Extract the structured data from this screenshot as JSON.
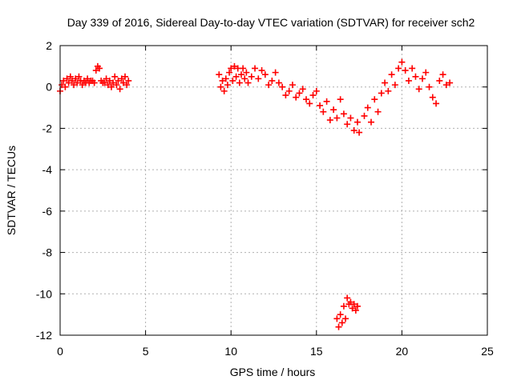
{
  "chart_data": {
    "type": "scatter",
    "title": "Day 339 of 2016, Sidereal Day-to-day VTEC variation (SDTVAR) for receiver sch2",
    "xlabel": "GPS time / hours",
    "ylabel": "SDTVAR / TECUs",
    "xlim": [
      0,
      25
    ],
    "ylim": [
      -12,
      2
    ],
    "xticks": [
      0,
      5,
      10,
      15,
      20,
      25
    ],
    "yticks": [
      -12,
      -10,
      -8,
      -6,
      -4,
      -2,
      0,
      2
    ],
    "xtick_labels": [
      "0",
      "5",
      "10",
      "15",
      "20",
      "25"
    ],
    "ytick_labels": [
      "-12",
      "-10",
      "-8",
      "-6",
      "-4",
      "-2",
      "0",
      "2"
    ],
    "grid": true,
    "marker": "+",
    "series": [
      {
        "name": "sch2",
        "color": "#ff0000",
        "segments": [
          {
            "x": [
              0.0,
              0.1,
              0.2,
              0.3,
              0.4,
              0.5,
              0.6,
              0.7,
              0.8,
              0.9,
              1.0,
              1.1,
              1.2,
              1.3,
              1.4,
              1.5,
              1.6,
              1.7,
              1.8
            ],
            "y": [
              -0.2,
              0.1,
              0.3,
              0.0,
              0.4,
              0.2,
              0.5,
              0.3,
              0.1,
              0.4,
              0.2,
              0.5,
              0.3,
              0.1,
              0.3,
              0.2,
              0.4,
              0.2,
              0.3
            ]
          },
          {
            "x": [
              1.9,
              2.0,
              2.1,
              2.2,
              2.3,
              2.4,
              2.5
            ],
            "y": [
              0.3,
              0.2,
              0.8,
              1.0,
              0.9,
              0.3,
              0.2
            ]
          },
          {
            "x": [
              2.6,
              2.7,
              2.8,
              2.9,
              3.0,
              3.1,
              3.2,
              3.3,
              3.4,
              3.5,
              3.6,
              3.7,
              3.8,
              3.9,
              4.0
            ],
            "y": [
              0.2,
              0.4,
              0.1,
              0.3,
              0.0,
              0.2,
              0.5,
              0.1,
              0.3,
              -0.1,
              0.4,
              0.2,
              0.5,
              0.1,
              0.3
            ]
          },
          {
            "x": [
              9.3,
              9.4,
              9.5,
              9.6,
              9.7,
              9.8,
              9.9,
              10.0,
              10.1,
              10.2,
              10.3,
              10.4,
              10.5,
              10.6,
              10.7,
              10.8,
              10.9,
              11.0,
              11.2,
              11.4,
              11.6,
              11.8,
              12.0,
              12.2,
              12.4,
              12.6,
              12.8,
              13.0,
              13.2,
              13.4,
              13.6,
              13.8,
              14.0,
              14.2,
              14.4,
              14.6,
              14.8,
              15.0,
              15.2,
              15.4,
              15.6,
              15.8,
              16.0,
              16.2,
              16.4,
              16.6,
              16.8,
              17.0,
              17.2,
              17.4,
              17.5
            ],
            "y": [
              0.6,
              0.0,
              0.3,
              -0.2,
              0.4,
              0.1,
              0.7,
              0.9,
              0.3,
              1.0,
              0.5,
              0.9,
              0.2,
              0.6,
              0.9,
              0.4,
              0.7,
              0.2,
              0.5,
              0.9,
              0.4,
              0.8,
              0.6,
              0.1,
              0.3,
              0.7,
              0.2,
              0.0,
              -0.4,
              -0.2,
              0.1,
              -0.5,
              -0.3,
              -0.1,
              -0.6,
              -0.8,
              -0.4,
              -0.2,
              -0.9,
              -1.2,
              -0.7,
              -1.6,
              -1.1,
              -1.5,
              -0.6,
              -1.3,
              -1.8,
              -1.5,
              -2.1,
              -1.7,
              -2.2
            ]
          },
          {
            "x": [
              16.2,
              16.3,
              16.4,
              16.5,
              16.6,
              16.7,
              16.8,
              16.9,
              17.0,
              17.1,
              17.2,
              17.3,
              17.4
            ],
            "y": [
              -11.2,
              -11.6,
              -11.0,
              -11.4,
              -10.6,
              -11.2,
              -10.2,
              -10.5,
              -10.4,
              -10.7,
              -10.5,
              -10.8,
              -10.6
            ]
          },
          {
            "x": [
              17.8,
              18.0,
              18.2,
              18.4,
              18.6,
              18.8,
              19.0,
              19.2,
              19.4,
              19.6,
              19.8,
              20.0,
              20.2,
              20.4,
              20.6,
              20.8,
              21.0,
              21.2,
              21.4,
              21.6,
              21.8,
              22.0,
              22.2,
              22.4,
              22.6,
              22.8
            ],
            "y": [
              -1.4,
              -1.0,
              -1.7,
              -0.6,
              -1.2,
              -0.3,
              0.2,
              -0.2,
              0.6,
              0.1,
              0.9,
              1.2,
              0.8,
              0.3,
              0.9,
              0.5,
              -0.1,
              0.4,
              0.7,
              0.0,
              -0.5,
              -0.8,
              0.3,
              0.6,
              0.1,
              0.2
            ]
          }
        ]
      }
    ]
  }
}
